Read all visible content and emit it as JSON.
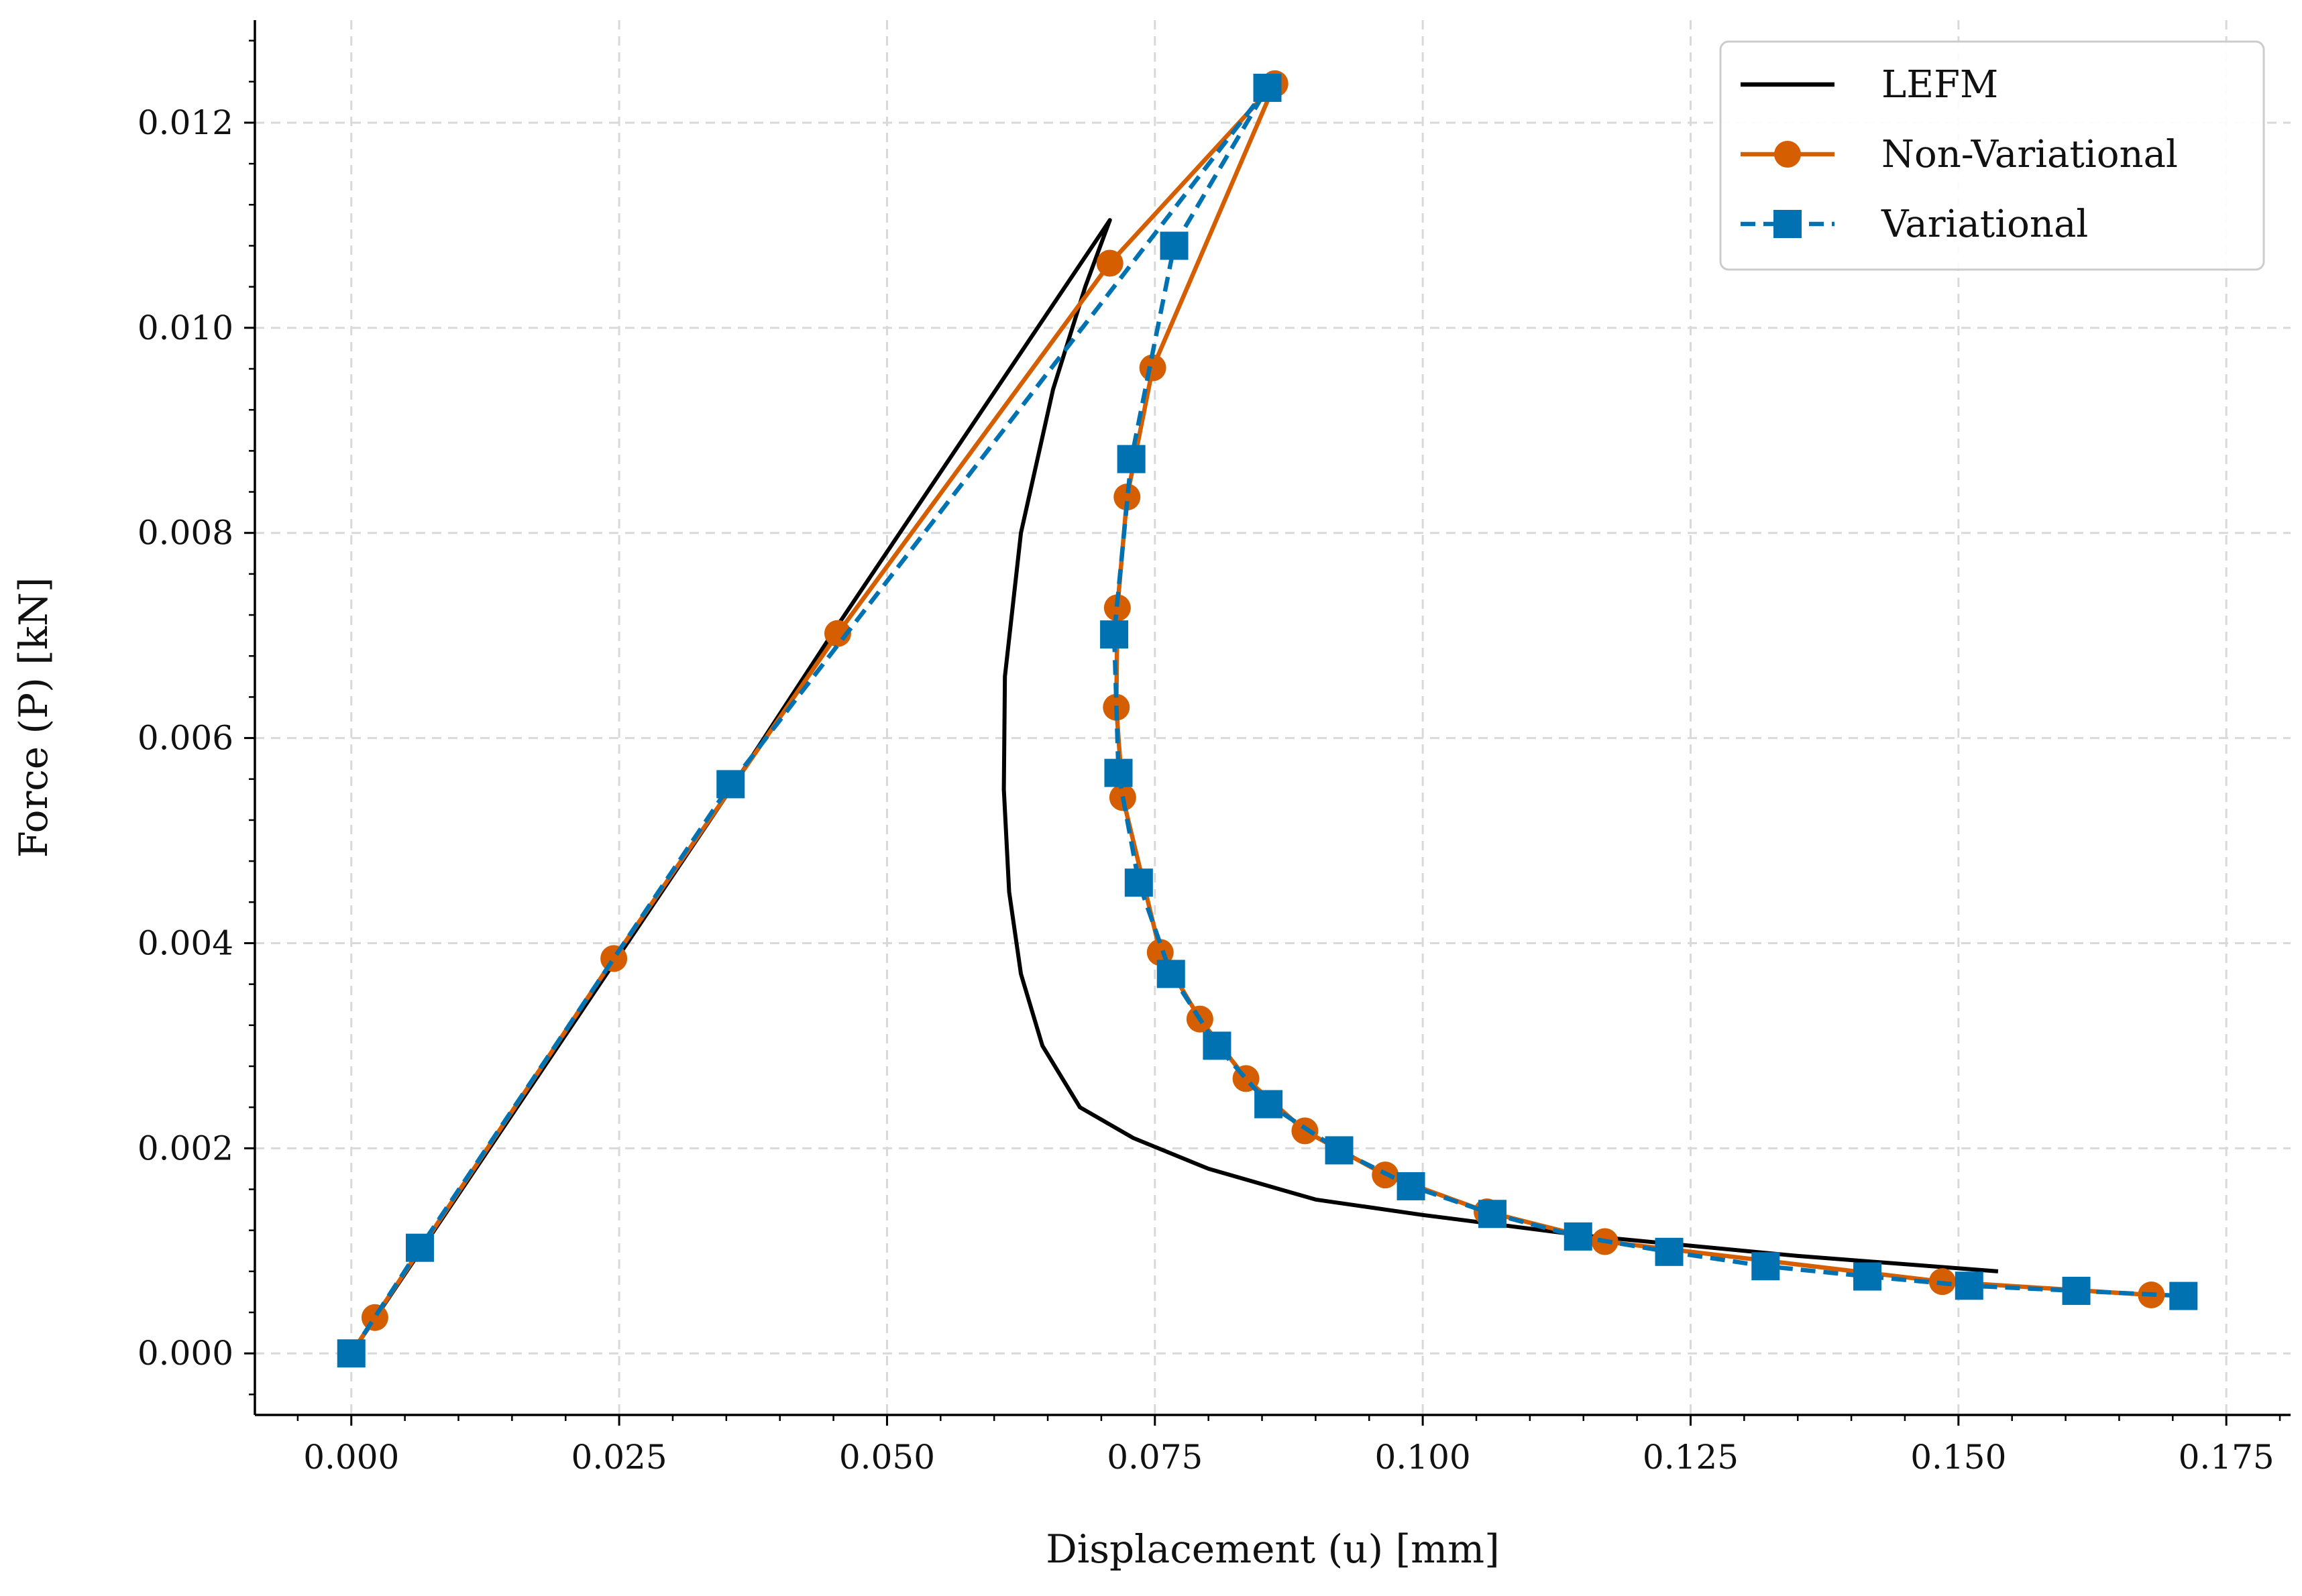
{
  "chart_data": {
    "type": "line",
    "xlabel": "Displacement (u) [mm]",
    "ylabel": "Force (P) [kN]",
    "xlim": [
      -0.009,
      0.181
    ],
    "ylim": [
      -0.0006,
      0.013
    ],
    "x_ticks": [
      "0.000",
      "0.025",
      "0.050",
      "0.075",
      "0.100",
      "0.125",
      "0.150",
      "0.175"
    ],
    "y_ticks": [
      "0.000",
      "0.002",
      "0.004",
      "0.006",
      "0.008",
      "0.010",
      "0.012"
    ],
    "grid": true,
    "legend_position": "top-right",
    "series": [
      {
        "name": "LEFM",
        "color": "#000000",
        "style": "solid",
        "marker": "none",
        "points": [
          [
            0.0,
            0.0
          ],
          [
            0.0071,
            0.0011
          ],
          [
            0.0354,
            0.0055
          ],
          [
            0.0454,
            0.0071
          ],
          [
            0.0708,
            0.01105
          ],
          [
            0.0685,
            0.0104
          ],
          [
            0.0655,
            0.0094
          ],
          [
            0.0625,
            0.008
          ],
          [
            0.061,
            0.0066
          ],
          [
            0.0609,
            0.0055
          ],
          [
            0.0614,
            0.0045
          ],
          [
            0.0625,
            0.0037
          ],
          [
            0.0645,
            0.003
          ],
          [
            0.068,
            0.0024
          ],
          [
            0.073,
            0.0021
          ],
          [
            0.08,
            0.0018
          ],
          [
            0.09,
            0.0015
          ],
          [
            0.1,
            0.00135
          ],
          [
            0.115,
            0.00115
          ],
          [
            0.135,
            0.00095
          ],
          [
            0.1537,
            0.0008
          ]
        ]
      },
      {
        "name": "Non-Variational",
        "color": "#D55E00",
        "style": "solid",
        "marker": "circle",
        "points": [
          [
            0.0,
            0.0
          ],
          [
            0.0022,
            0.00035
          ],
          [
            0.0245,
            0.00385
          ],
          [
            0.0454,
            0.00702
          ],
          [
            0.0708,
            0.01063
          ],
          [
            0.0862,
            0.01238
          ],
          [
            0.0748,
            0.00961
          ],
          [
            0.0724,
            0.00835
          ],
          [
            0.0715,
            0.00727
          ],
          [
            0.0714,
            0.0063
          ],
          [
            0.072,
            0.00542
          ],
          [
            0.0755,
            0.00391
          ],
          [
            0.0792,
            0.00326
          ],
          [
            0.0835,
            0.00268
          ],
          [
            0.089,
            0.00217
          ],
          [
            0.0965,
            0.00174
          ],
          [
            0.106,
            0.00138
          ],
          [
            0.117,
            0.00109
          ],
          [
            0.1485,
            0.0007
          ],
          [
            0.168,
            0.00057
          ]
        ]
      },
      {
        "name": "Variational",
        "color": "#0072B2",
        "style": "dashed",
        "marker": "square",
        "points": [
          [
            0.0,
            0.0
          ],
          [
            0.0064,
            0.00103
          ],
          [
            0.0354,
            0.00555
          ],
          [
            0.0855,
            0.01234
          ],
          [
            0.0768,
            0.0108
          ],
          [
            0.0728,
            0.00872
          ],
          [
            0.0712,
            0.00701
          ],
          [
            0.0716,
            0.00566
          ],
          [
            0.0735,
            0.00459
          ],
          [
            0.0765,
            0.0037
          ],
          [
            0.0808,
            0.003
          ],
          [
            0.0856,
            0.00243
          ],
          [
            0.0922,
            0.00198
          ],
          [
            0.0989,
            0.00163
          ],
          [
            0.1065,
            0.00136
          ],
          [
            0.1145,
            0.00114
          ],
          [
            0.123,
            0.00099
          ],
          [
            0.132,
            0.00085
          ],
          [
            0.1415,
            0.00075
          ],
          [
            0.151,
            0.00066
          ],
          [
            0.161,
            0.00061
          ],
          [
            0.171,
            0.00056
          ]
        ]
      }
    ]
  }
}
